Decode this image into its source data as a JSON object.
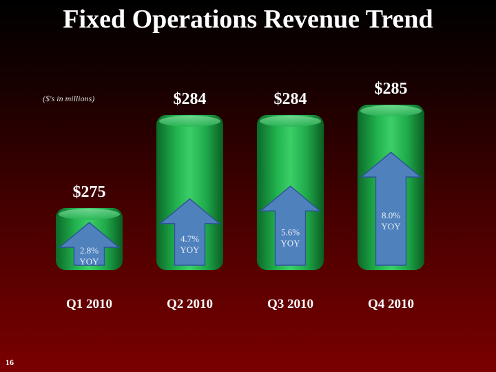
{
  "title": "Fixed Operations Revenue Trend",
  "units_note": "($'s in millions)",
  "page_number": "16",
  "chart_data": {
    "type": "bar",
    "title": "Fixed Operations Revenue Trend",
    "ylabel": "($'s in millions)",
    "categories": [
      "Q1 2010",
      "Q2 2010",
      "Q3 2010",
      "Q4 2010"
    ],
    "values": [
      275,
      284,
      284,
      285
    ],
    "value_labels": [
      "$275",
      "$284",
      "$284",
      "$285"
    ],
    "yoy_growth_pct": [
      2.8,
      4.7,
      5.6,
      8.0
    ],
    "yoy_labels": [
      "2.8%",
      "4.7%",
      "5.6%",
      "8.0%"
    ],
    "yoy_suffix": "YOY",
    "ylim": [
      269,
      286
    ],
    "grid": false,
    "colors": {
      "bar": "#1fa84a",
      "arrow": "#4f81bd"
    }
  }
}
